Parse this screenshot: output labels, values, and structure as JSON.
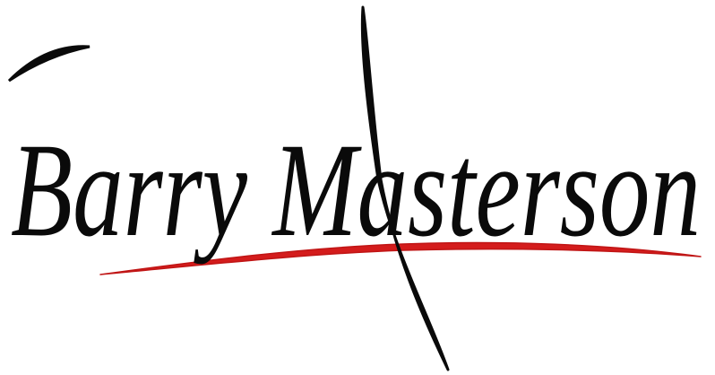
{
  "logo": {
    "text": "Barry Masterson"
  }
}
